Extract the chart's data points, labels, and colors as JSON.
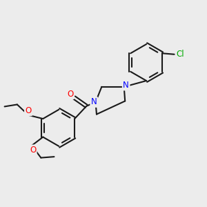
{
  "background_color": "#ececec",
  "bond_color": "#1a1a1a",
  "N_color": "#0000ff",
  "O_color": "#ff0000",
  "Cl_color": "#00aa00",
  "lw": 1.5,
  "figsize": [
    3.0,
    3.0
  ],
  "dpi": 100,
  "xlim": [
    0,
    10
  ],
  "ylim": [
    0,
    10
  ],
  "bond_r": 0.8,
  "fs": 8.5
}
